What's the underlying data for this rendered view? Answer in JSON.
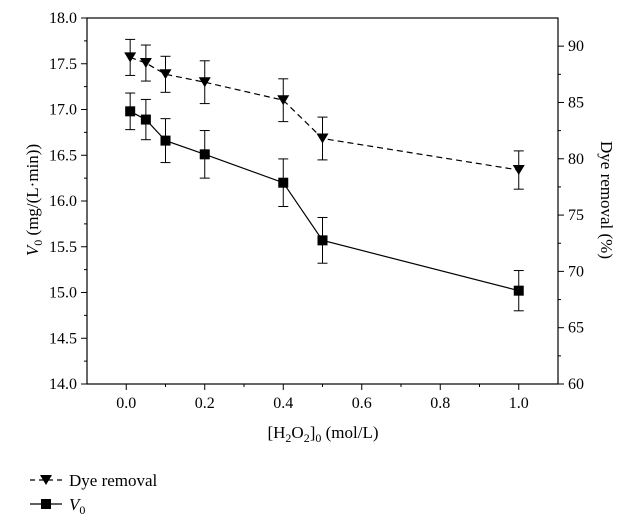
{
  "chart_data": {
    "type": "line",
    "title": "",
    "x": [
      0.01,
      0.05,
      0.1,
      0.2,
      0.4,
      0.5,
      1.0
    ],
    "xlim": [
      -0.1,
      1.1
    ],
    "x_ticks": [
      "0.0",
      "0.2",
      "0.4",
      "0.6",
      "0.8",
      "1.0"
    ],
    "x_tick_values": [
      0.0,
      0.2,
      0.4,
      0.6,
      0.8,
      1.0
    ],
    "xlabel": {
      "bracket_open": "[H",
      "sub1": "2",
      "mid": "O",
      "sub2": "2",
      "bracket_close": "]",
      "sub3": "0",
      "unit": " (mol/L)"
    },
    "ylabel_left": {
      "var": "V",
      "sub": "0",
      "unit": " (mg/(L·min))"
    },
    "ylabel_right": "Dye removal (%)",
    "ylim_left": [
      14.0,
      18.0
    ],
    "ylim_right": [
      60,
      92.5
    ],
    "y_left_ticks": [
      "14.0",
      "14.5",
      "15.0",
      "15.5",
      "16.0",
      "16.5",
      "17.0",
      "17.5",
      "18.0"
    ],
    "y_left_tick_values": [
      14.0,
      14.5,
      15.0,
      15.5,
      16.0,
      16.5,
      17.0,
      17.5,
      18.0
    ],
    "y_right_ticks": [
      "60",
      "65",
      "70",
      "75",
      "80",
      "85",
      "90"
    ],
    "y_right_tick_values": [
      60,
      65,
      70,
      75,
      80,
      85,
      90
    ],
    "grid": false,
    "legend_position": "bottom-left",
    "series": [
      {
        "name": "Dye removal",
        "axis": "right",
        "marker": "triangle-down",
        "line_style": "dashed",
        "values": [
          89.0,
          88.5,
          87.5,
          86.8,
          85.2,
          81.8,
          79.0
        ],
        "errors": [
          1.6,
          1.6,
          1.6,
          1.9,
          1.9,
          1.9,
          1.7
        ]
      },
      {
        "name": "V0",
        "legend_label": {
          "var": "V",
          "sub": "0"
        },
        "axis": "left",
        "marker": "square",
        "line_style": "solid",
        "values": [
          16.98,
          16.89,
          16.66,
          16.51,
          16.2,
          15.57,
          15.02
        ],
        "errors": [
          0.2,
          0.22,
          0.24,
          0.26,
          0.26,
          0.25,
          0.22
        ]
      }
    ]
  }
}
